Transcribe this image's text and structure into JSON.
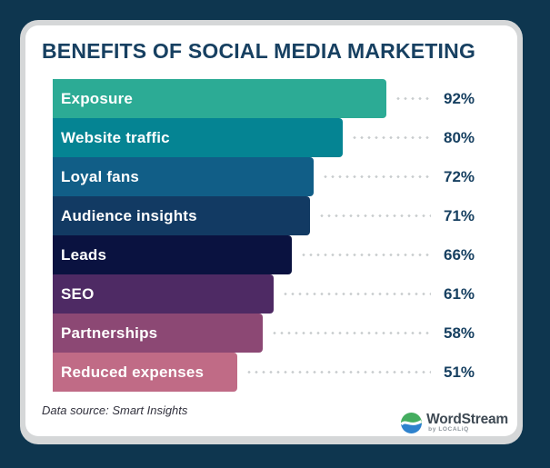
{
  "page": {
    "background_color": "#0e364f",
    "card_border_color": "#d5d7d8",
    "card_background_color": "#ffffff"
  },
  "title": "BENEFITS OF SOCIAL MEDIA MARKETING",
  "chart_data": {
    "type": "bar",
    "orientation": "horizontal",
    "title": "BENEFITS OF SOCIAL MEDIA MARKETING",
    "unit": "%",
    "xlim": [
      0,
      100
    ],
    "grid": false,
    "legend": false,
    "categories": [
      "Exposure",
      "Website traffic",
      "Loyal fans",
      "Audience insights",
      "Leads",
      "SEO",
      "Partnerships",
      "Reduced expenses"
    ],
    "values": [
      92,
      80,
      72,
      71,
      66,
      61,
      58,
      51
    ],
    "rows": [
      {
        "label": "Exposure",
        "value": 92,
        "value_label": "92%",
        "color": "#2cab95"
      },
      {
        "label": "Website traffic",
        "value": 80,
        "value_label": "80%",
        "color": "#058493"
      },
      {
        "label": "Loyal fans",
        "value": 72,
        "value_label": "72%",
        "color": "#115e87"
      },
      {
        "label": "Audience insights",
        "value": 71,
        "value_label": "71%",
        "color": "#123a63"
      },
      {
        "label": "Leads",
        "value": 66,
        "value_label": "66%",
        "color": "#0a1240"
      },
      {
        "label": "SEO",
        "value": 61,
        "value_label": "61%",
        "color": "#4e2a64"
      },
      {
        "label": "Partnerships",
        "value": 58,
        "value_label": "58%",
        "color": "#8c4874"
      },
      {
        "label": "Reduced expenses",
        "value": 51,
        "value_label": "51%",
        "color": "#c06b86"
      }
    ],
    "bar_label_color": "#ffffff",
    "value_label_color": "#174061",
    "leader_dot_color": "#c8ccce"
  },
  "footer": {
    "source_note": "Data source: Smart Insights",
    "logo": {
      "name": "WordStream",
      "sub": "by LOCALiQ",
      "icon": "wordstream-wave-icon",
      "icon_green": "#44ad5f",
      "icon_blue": "#2e82cd"
    }
  }
}
